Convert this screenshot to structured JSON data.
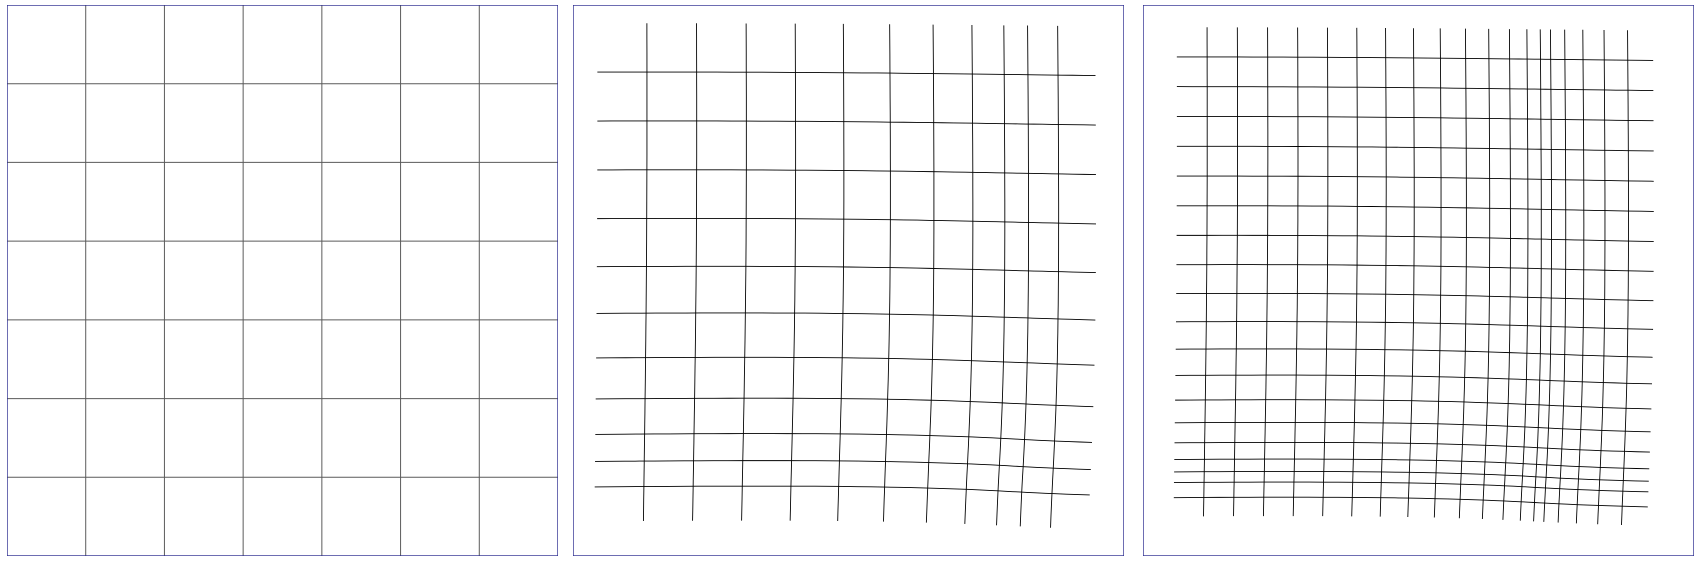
{
  "panels": [
    {
      "id": "uniform-mesh",
      "kind": "uniform-grid",
      "cells_x": 7,
      "cells_y": 7
    },
    {
      "id": "refined-mesh-level-1",
      "kind": "refined-grid",
      "refinement_level": 1
    },
    {
      "id": "refined-mesh-level-2",
      "kind": "refined-grid",
      "refinement_level": 2
    }
  ],
  "colors": {
    "background": "#ffffff",
    "border": "#2b2b8f",
    "uniform_lines": "#5a5a5a",
    "mesh_lines": "#000000"
  }
}
